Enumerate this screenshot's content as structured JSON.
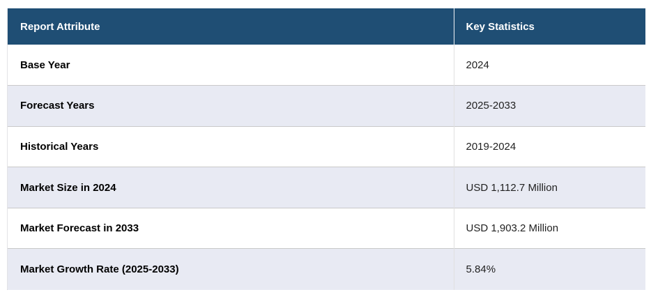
{
  "table": {
    "columns": {
      "attribute": "Report Attribute",
      "statistics": "Key Statistics"
    },
    "rows": [
      {
        "attribute": "Base Year",
        "value": "2024"
      },
      {
        "attribute": "Forecast Years",
        "value": "2025-2033"
      },
      {
        "attribute": "Historical Years",
        "value": "2019-2024"
      },
      {
        "attribute": "Market Size in 2024",
        "value": "USD 1,112.7 Million"
      },
      {
        "attribute": "Market Forecast in 2033",
        "value": "USD 1,903.2 Million"
      },
      {
        "attribute": "Market Growth Rate (2025-2033)",
        "value": "5.84%"
      }
    ],
    "colors": {
      "header_bg": "#1F4E74",
      "header_text": "#FFFFFF",
      "row_bg": "#FFFFFF",
      "row_alt_bg": "#E8EAF3",
      "row_border": "#C9C9C9",
      "column_divider": "#E0E0E0"
    }
  }
}
